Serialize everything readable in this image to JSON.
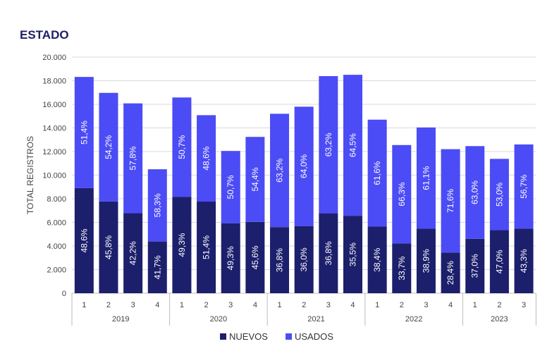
{
  "chart_data": {
    "type": "bar",
    "stacked": true,
    "title": "ESTADO",
    "ylabel": "TOTAL REGISTROS",
    "xlabel": "",
    "ylim": [
      0,
      20000
    ],
    "yticks": [
      "0",
      "2.000",
      "4.000",
      "6.000",
      "8.000",
      "10.000",
      "12.000",
      "14.000",
      "16.000",
      "18.000",
      "20.000"
    ],
    "grid": true,
    "legend_position": "bottom-center",
    "groups": [
      {
        "label": "2019",
        "categories": [
          "1",
          "2",
          "3",
          "4"
        ]
      },
      {
        "label": "2020",
        "categories": [
          "1",
          "2",
          "3",
          "4"
        ]
      },
      {
        "label": "2021",
        "categories": [
          "1",
          "2",
          "3",
          "4"
        ]
      },
      {
        "label": "2022",
        "categories": [
          "1",
          "2",
          "3",
          "4"
        ]
      },
      {
        "label": "2023",
        "categories": [
          "1",
          "2",
          "3"
        ]
      }
    ],
    "series": [
      {
        "name": "NUEVOS",
        "color": "#1c1f6b",
        "values": [
          8900,
          7770,
          6780,
          4380,
          8170,
          7760,
          5930,
          6040,
          5600,
          5690,
          6770,
          6560,
          5640,
          4220,
          5460,
          3450,
          4610,
          5340,
          5460
        ],
        "labels": [
          "48,6%",
          "45,8%",
          "42,2%",
          "41,7%",
          "49,3%",
          "51,4%",
          "49,3%",
          "45,6%",
          "36,8%",
          "36,0%",
          "36,8%",
          "35,5%",
          "38,4%",
          "33,7%",
          "38,9%",
          "28,4%",
          "37,0%",
          "47,0%",
          "43,3%"
        ]
      },
      {
        "name": "USADOS",
        "color": "#4b4cf5",
        "values": [
          9420,
          9200,
          9300,
          6120,
          8410,
          7320,
          6120,
          7200,
          9600,
          10110,
          11620,
          11940,
          9060,
          8330,
          8580,
          8750,
          7850,
          6040,
          7140
        ],
        "labels": [
          "51,4%",
          "54,2%",
          "57,8%",
          "58,3%",
          "50,7%",
          "48,6%",
          "50,7%",
          "54,4%",
          "63,2%",
          "64,0%",
          "63,2%",
          "64,5%",
          "61,6%",
          "66,3%",
          "61,1%",
          "71,6%",
          "63,0%",
          "53,0%",
          "56,7%"
        ]
      }
    ]
  }
}
